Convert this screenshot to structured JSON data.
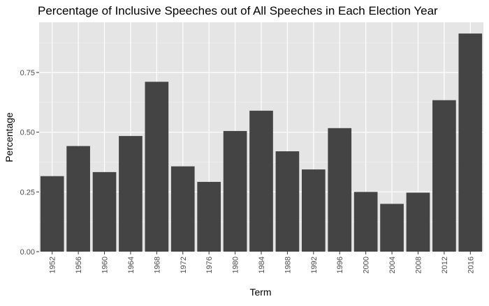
{
  "chart_data": {
    "type": "bar",
    "title": "Percentage of Inclusive Speeches out of All Speeches in Each Election Year",
    "xlabel": "Term",
    "ylabel": "Percentage",
    "categories": [
      "1952",
      "1956",
      "1960",
      "1964",
      "1968",
      "1972",
      "1976",
      "1980",
      "1984",
      "1988",
      "1992",
      "1996",
      "2000",
      "2004",
      "2008",
      "2012",
      "2016"
    ],
    "values": [
      0.316,
      0.442,
      0.333,
      0.484,
      0.711,
      0.357,
      0.292,
      0.505,
      0.59,
      0.42,
      0.344,
      0.517,
      0.25,
      0.2,
      0.247,
      0.634,
      0.913
    ],
    "ylim": [
      0,
      0.96
    ],
    "yticks": [
      0,
      0.25,
      0.5,
      0.75
    ],
    "ytick_labels": [
      "0.00",
      "0.25",
      "0.50",
      "0.75"
    ],
    "grid": true,
    "legend": "none",
    "colors": {
      "bar": "#444444",
      "panel": "#e5e5e5",
      "grid_major": "#ffffff",
      "grid_minor": "#f2f2f2",
      "tick": "#333333"
    }
  }
}
